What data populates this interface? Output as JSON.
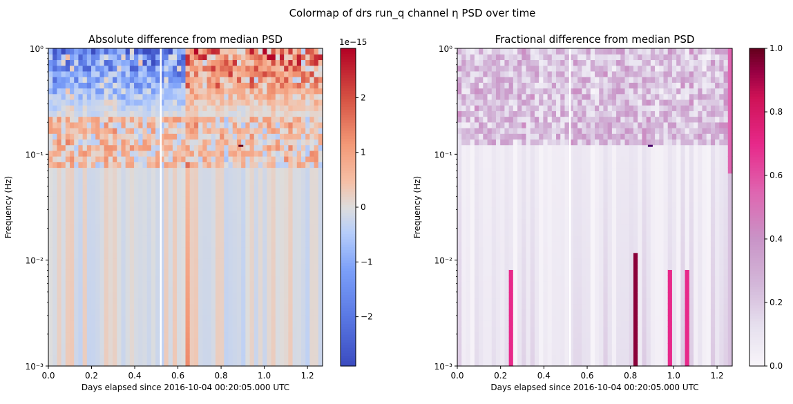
{
  "figure": {
    "suptitle": "Colormap of drs run_q channel η PSD over time"
  },
  "chart_data": [
    {
      "type": "heatmap",
      "title": "Absolute difference from median PSD",
      "xlabel": "Days elapsed since 2016-10-04 00:20:05.000 UTC",
      "ylabel": "Frequency (Hz)",
      "xlim": [
        0,
        1.27
      ],
      "ylim": [
        0.001,
        1
      ],
      "yscale": "log",
      "x_ticks": [
        "0.0",
        "0.2",
        "0.4",
        "0.6",
        "0.8",
        "1.0",
        "1.2"
      ],
      "x_tick_values": [
        0,
        0.2,
        0.4,
        0.6,
        0.8,
        1.0,
        1.2
      ],
      "y_ticks": [
        "10⁻³",
        "10⁻²",
        "10⁻¹",
        "10⁰"
      ],
      "y_tick_values": [
        0.001,
        0.01,
        0.1,
        1
      ],
      "colormap": "coolwarm",
      "colorbar": {
        "min": -2.9,
        "max": 2.9,
        "ticks": [
          "−2",
          "−1",
          "0",
          "1",
          "2"
        ],
        "tick_values": [
          -2,
          -1,
          0,
          1,
          2
        ],
        "offset_label": "1e−15"
      },
      "gap_x": 0.52,
      "marker": {
        "x": 0.89,
        "freq": 0.12
      },
      "colors": {
        "low": "#3b4cc0",
        "mid": "#dddddd",
        "high": "#b40426"
      }
    },
    {
      "type": "heatmap",
      "title": "Fractional difference from median PSD",
      "xlabel": "Days elapsed since 2016-10-04 00:20:05.000 UTC",
      "ylabel": "Frequency (Hz)",
      "xlim": [
        0,
        1.27
      ],
      "ylim": [
        0.001,
        1
      ],
      "yscale": "log",
      "x_ticks": [
        "0.0",
        "0.2",
        "0.4",
        "0.6",
        "0.8",
        "1.0",
        "1.2"
      ],
      "x_tick_values": [
        0,
        0.2,
        0.4,
        0.6,
        0.8,
        1.0,
        1.2
      ],
      "y_ticks": [
        "10⁻³",
        "10⁻²",
        "10⁻¹",
        "10⁰"
      ],
      "y_tick_values": [
        0.001,
        0.01,
        0.1,
        1
      ],
      "colormap": "PuRd",
      "colorbar": {
        "min": 0,
        "max": 1,
        "ticks": [
          "0.0",
          "0.2",
          "0.4",
          "0.6",
          "0.8",
          "1.0"
        ],
        "tick_values": [
          0,
          0.2,
          0.4,
          0.6,
          0.8,
          1.0
        ]
      },
      "gap_x": 0.52,
      "marker": {
        "x": 0.89,
        "freq": 0.12
      },
      "colors": {
        "low": "#f7f4f9",
        "mid": "#df65b0",
        "high": "#67001f"
      }
    }
  ]
}
